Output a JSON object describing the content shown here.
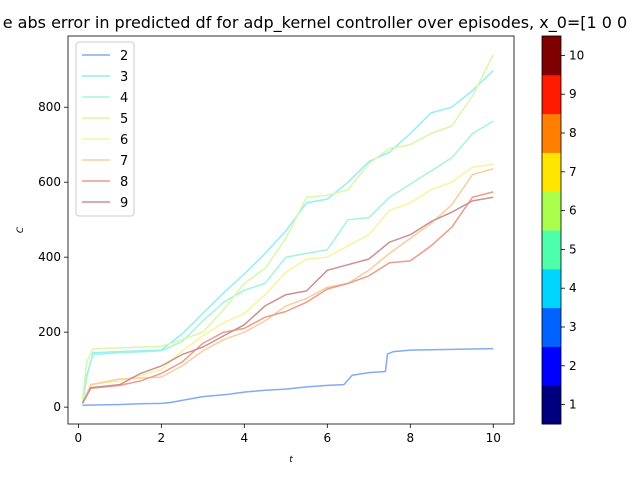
{
  "chart_data": {
    "type": "line",
    "title": "e abs error in predicted df for adp_kernel controller over episodes, x_0=[1 0 0",
    "xlabel": "t",
    "ylabel": "C",
    "xlim": [
      -0.25,
      10.5
    ],
    "ylim": [
      -45,
      990
    ],
    "xticks": [
      0,
      2,
      4,
      6,
      8,
      10
    ],
    "yticks": [
      0,
      200,
      400,
      600,
      800
    ],
    "grid": false,
    "legend_position": "top-left",
    "series": [
      {
        "name": "2",
        "color": "#84aaf5",
        "x": [
          0.1,
          0.5,
          1.0,
          1.5,
          2.0,
          2.2,
          2.6,
          3.0,
          3.6,
          4.0,
          4.5,
          5.0,
          5.5,
          6.0,
          6.4,
          6.6,
          7.0,
          7.4,
          7.45,
          7.6,
          8.0,
          9.0,
          10.0
        ],
        "y": [
          5,
          6,
          7,
          9,
          10,
          12,
          20,
          28,
          34,
          40,
          45,
          48,
          54,
          58,
          60,
          85,
          92,
          95,
          142,
          148,
          152,
          154,
          156
        ]
      },
      {
        "name": "3",
        "color": "#91eefa",
        "x": [
          0.1,
          0.2,
          0.35,
          1.0,
          2.0,
          2.5,
          3.0,
          3.5,
          4.0,
          4.5,
          5.0,
          5.5,
          6.0,
          6.5,
          7.0,
          7.5,
          8.0,
          8.5,
          9.0,
          9.5,
          10.0
        ],
        "y": [
          10,
          80,
          145,
          148,
          152,
          195,
          250,
          305,
          355,
          410,
          470,
          545,
          555,
          600,
          655,
          680,
          730,
          785,
          800,
          845,
          898
        ]
      },
      {
        "name": "4",
        "color": "#a3f5d9",
        "x": [
          0.1,
          0.2,
          0.35,
          1.0,
          2.0,
          2.5,
          3.0,
          3.5,
          4.0,
          4.5,
          5.0,
          5.5,
          6.0,
          6.5,
          7.0,
          7.5,
          8.0,
          8.5,
          9.0,
          9.5,
          10.0
        ],
        "y": [
          10,
          85,
          140,
          145,
          150,
          175,
          230,
          280,
          312,
          330,
          400,
          410,
          420,
          500,
          505,
          560,
          595,
          630,
          665,
          730,
          763
        ]
      },
      {
        "name": "5",
        "color": "#d8f7a9",
        "x": [
          0.1,
          0.2,
          0.35,
          1.0,
          2.0,
          2.5,
          3.0,
          3.5,
          4.0,
          4.5,
          5.0,
          5.5,
          6.0,
          6.5,
          7.0,
          7.5,
          8.0,
          8.5,
          9.0,
          9.5,
          10.0
        ],
        "y": [
          20,
          120,
          155,
          158,
          162,
          180,
          200,
          260,
          330,
          370,
          450,
          560,
          565,
          580,
          650,
          690,
          700,
          730,
          750,
          830,
          940
        ]
      },
      {
        "name": "6",
        "color": "#f5f59c",
        "x": [
          0.1,
          0.3,
          1.0,
          2.0,
          2.5,
          3.0,
          3.5,
          4.0,
          4.5,
          5.0,
          5.5,
          6.0,
          6.5,
          7.0,
          7.5,
          8.0,
          8.5,
          9.0,
          9.5,
          10.0
        ],
        "y": [
          10,
          60,
          70,
          100,
          150,
          190,
          225,
          250,
          300,
          360,
          395,
          400,
          430,
          460,
          525,
          545,
          580,
          600,
          640,
          648
        ]
      },
      {
        "name": "7",
        "color": "#facc9e",
        "x": [
          0.1,
          0.3,
          1.0,
          1.5,
          2.0,
          2.5,
          3.0,
          3.5,
          4.0,
          4.5,
          5.0,
          5.5,
          6.0,
          6.5,
          7.0,
          7.5,
          8.0,
          8.5,
          9.0,
          9.5,
          10.0
        ],
        "y": [
          10,
          60,
          75,
          78,
          80,
          110,
          150,
          180,
          200,
          230,
          270,
          290,
          320,
          330,
          365,
          410,
          450,
          490,
          540,
          620,
          636
        ]
      },
      {
        "name": "8",
        "color": "#ee9a8a",
        "x": [
          0.1,
          0.3,
          1.0,
          1.5,
          2.0,
          2.5,
          3.0,
          3.5,
          4.0,
          4.5,
          5.0,
          5.5,
          6.0,
          6.5,
          7.0,
          7.5,
          8.0,
          8.5,
          9.0,
          9.5,
          10.0
        ],
        "y": [
          10,
          50,
          58,
          70,
          90,
          120,
          170,
          200,
          210,
          240,
          255,
          280,
          315,
          330,
          350,
          385,
          390,
          430,
          480,
          560,
          574
        ]
      },
      {
        "name": "9",
        "color": "#cc9090",
        "x": [
          0.1,
          0.3,
          1.0,
          1.5,
          2.0,
          2.5,
          3.0,
          3.5,
          4.0,
          4.5,
          5.0,
          5.5,
          6.0,
          6.5,
          7.0,
          7.5,
          8.0,
          8.5,
          9.0,
          9.5,
          10.0
        ],
        "y": [
          10,
          52,
          60,
          90,
          110,
          140,
          160,
          190,
          220,
          270,
          300,
          310,
          365,
          380,
          395,
          440,
          460,
          495,
          520,
          550,
          560
        ]
      }
    ],
    "colorbar": {
      "ticks": [
        "1",
        "2",
        "3",
        "4",
        "5",
        "6",
        "7",
        "8",
        "9",
        "10"
      ],
      "colors": [
        "#00007f",
        "#0000ff",
        "#0063ff",
        "#00d5ff",
        "#4dffaa",
        "#aaff4d",
        "#ffe500",
        "#ff7f00",
        "#ff1a00",
        "#7f0000"
      ]
    }
  }
}
